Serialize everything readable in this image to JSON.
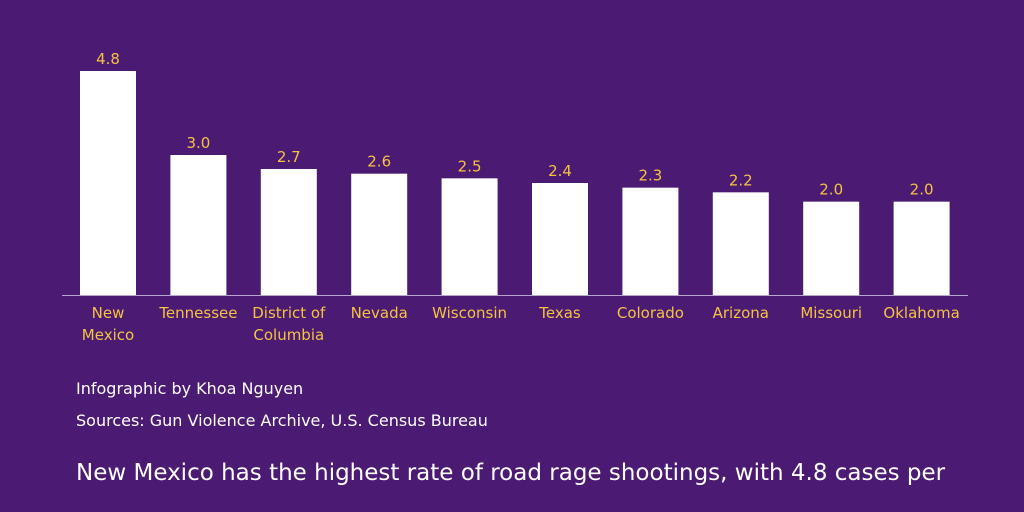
{
  "chart_data": {
    "type": "bar",
    "categories": [
      "New Mexico",
      "Tennessee",
      "District of Columbia",
      "Nevada",
      "Wisconsin",
      "Texas",
      "Colorado",
      "Arizona",
      "Missouri",
      "Oklahoma"
    ],
    "category_lines": [
      [
        "New",
        "Mexico"
      ],
      [
        "Tennessee"
      ],
      [
        "District of",
        "Columbia"
      ],
      [
        "Nevada"
      ],
      [
        "Wisconsin"
      ],
      [
        "Texas"
      ],
      [
        "Colorado"
      ],
      [
        "Arizona"
      ],
      [
        "Missouri"
      ],
      [
        "Oklahoma"
      ]
    ],
    "values": [
      4.8,
      3.0,
      2.7,
      2.6,
      2.5,
      2.4,
      2.3,
      2.2,
      2.0,
      2.0
    ],
    "value_labels": [
      "4.8",
      "3.0",
      "2.7",
      "2.6",
      "2.5",
      "2.4",
      "2.3",
      "2.2",
      "2.0",
      "2.0"
    ],
    "ylim": [
      0,
      4.8
    ],
    "grid": false,
    "colors": {
      "background": "#4b1a72",
      "bar": "#ffffff",
      "label": "#f5c342",
      "axis": "#b9a6cf"
    }
  },
  "credits": {
    "author": "Infographic by Khoa Nguyen",
    "sources": "Sources: Gun Violence Archive, U.S. Census Bureau"
  },
  "summary": "New Mexico has the highest rate of road rage shootings, with 4.8 cases per"
}
